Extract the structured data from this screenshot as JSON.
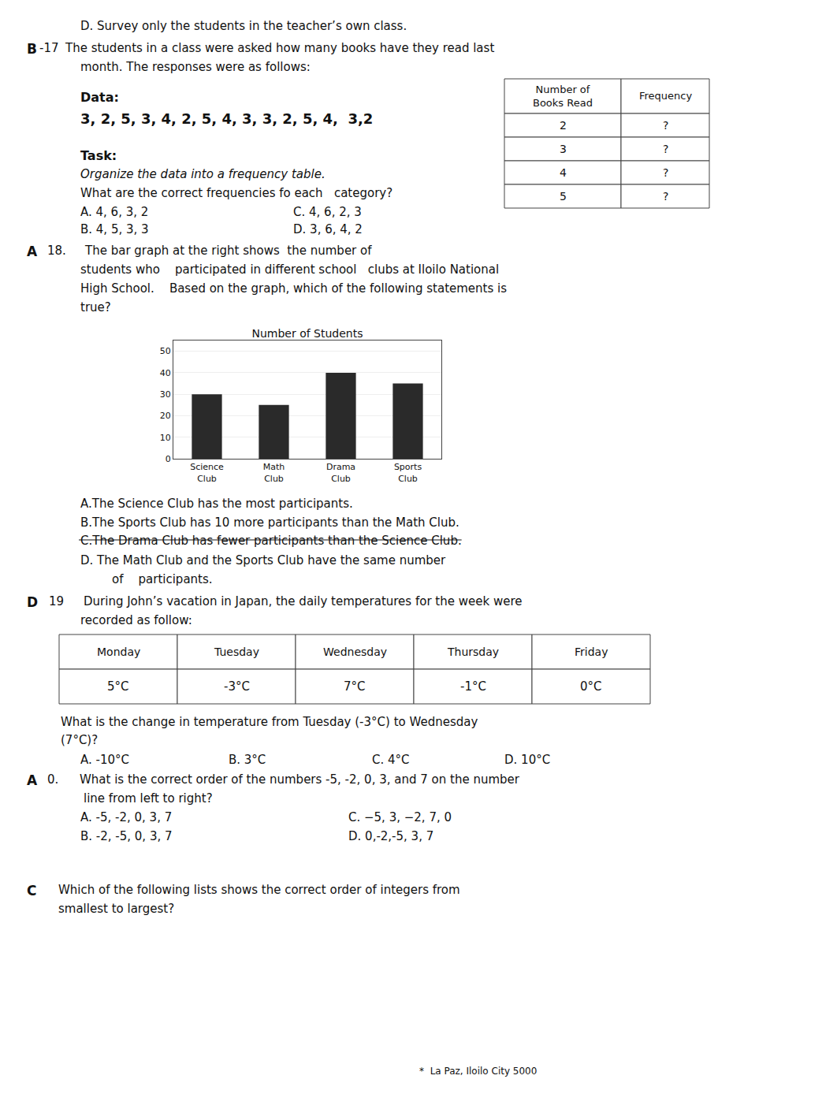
{
  "chart_data": {
    "type": "bar",
    "title": "Number of Students",
    "categories": [
      "Science\nClub",
      "Math\nClub",
      "Drama\nClub",
      "Sports\nClub"
    ],
    "values": [
      30,
      25,
      40,
      35
    ],
    "color": "#2a2a2a",
    "ylim": [
      0,
      55
    ],
    "yticks": [
      0,
      10,
      20,
      30,
      40,
      50
    ],
    "grid": true,
    "annotations": [
      "D. Survey only the students in the teacher’s own class.",
      "B",
      "-17",
      "The students in a class were asked how many books have they read last",
      "month. The responses were as follows:",
      "Data:",
      "3, 2, 5, 3, 4, 2, 5, 4, 3, 3, 2, 5, 4,  3,2",
      "Task:",
      "Organize the data into a frequency table.",
      "What are the correct frequencies fo each   category?",
      "A. 4, 6, 3, 2",
      "C. 4, 6, 2, 3",
      "B. 4, 5, 3, 3",
      "D. 3, 6, 4, 2",
      "Number of\nBooks Read",
      "Frequency",
      "2",
      "?",
      "3",
      "?",
      "4",
      "?",
      "5",
      "?",
      "A",
      "18.",
      "The bar graph at the right shows  the number of",
      "students who    participated in different school   clubs at Iloilo National",
      "High School.    Based on the graph, which of the following statements is",
      "true?",
      "A.The Science Club has the most participants.",
      "B.The Sports Club has 10 more participants than the Math Club.",
      "C.The Drama Club has fewer participants than the Science Club.",
      "D. The Math Club and the Sports Club have the same number",
      "of    participants.",
      "D",
      "19",
      "During John’s vacation in Japan, the daily temperatures for the week were",
      "recorded as follow:",
      "Monday",
      "Tuesday",
      "Wednesday",
      "Thursday",
      "Friday",
      "5°C",
      "-3°C",
      "7°C",
      "-1°C",
      "0°C",
      "What is the change in temperature from Tuesday (-3°C) to Wednesday",
      "(7°C)?",
      "A. -10°C",
      "B. 3°C",
      "C. 4°C",
      "D. 10°C",
      "A",
      "0.",
      "What is the correct order of the numbers -5, -2, 0, 3, and 7 on the number",
      "line from left to right?",
      "A. -5, -2, 0, 3, 7",
      "C. −5, 3, −2, 7, 0",
      "B. -2, -5, 0, 3, 7",
      "D. 0,-2,-5, 3, 7",
      "C",
      "Which of the following lists shows the correct order of integers from",
      "smallest to largest?",
      "*  La Paz, Iloilo City 5000"
    ]
  }
}
